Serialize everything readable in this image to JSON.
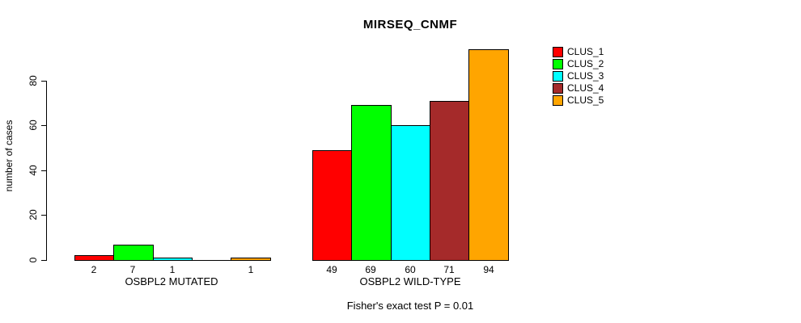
{
  "chart_data": {
    "type": "bar",
    "title": "MIRSEQ_CNMF",
    "ylabel": "number of cases",
    "yticks": [
      0,
      20,
      40,
      60,
      80
    ],
    "ylim": [
      0,
      94
    ],
    "grid": false,
    "legend_position": "right",
    "series_labels": [
      "CLUS_1",
      "CLUS_2",
      "CLUS_3",
      "CLUS_4",
      "CLUS_5"
    ],
    "colors": [
      "#FF0000",
      "#00FF00",
      "#00FFFF",
      "#A52A2A",
      "#FFA500"
    ],
    "groups": [
      {
        "label": "OSBPL2 MUTATED",
        "values": [
          2,
          7,
          1,
          0,
          1
        ],
        "bar_labels": [
          "2",
          "7",
          "1",
          "",
          "1"
        ]
      },
      {
        "label": "OSBPL2 WILD-TYPE",
        "values": [
          49,
          69,
          60,
          71,
          94
        ],
        "bar_labels": [
          "49",
          "69",
          "60",
          "71",
          "94"
        ]
      }
    ],
    "footer": "Fisher's exact test P = 0.01"
  }
}
